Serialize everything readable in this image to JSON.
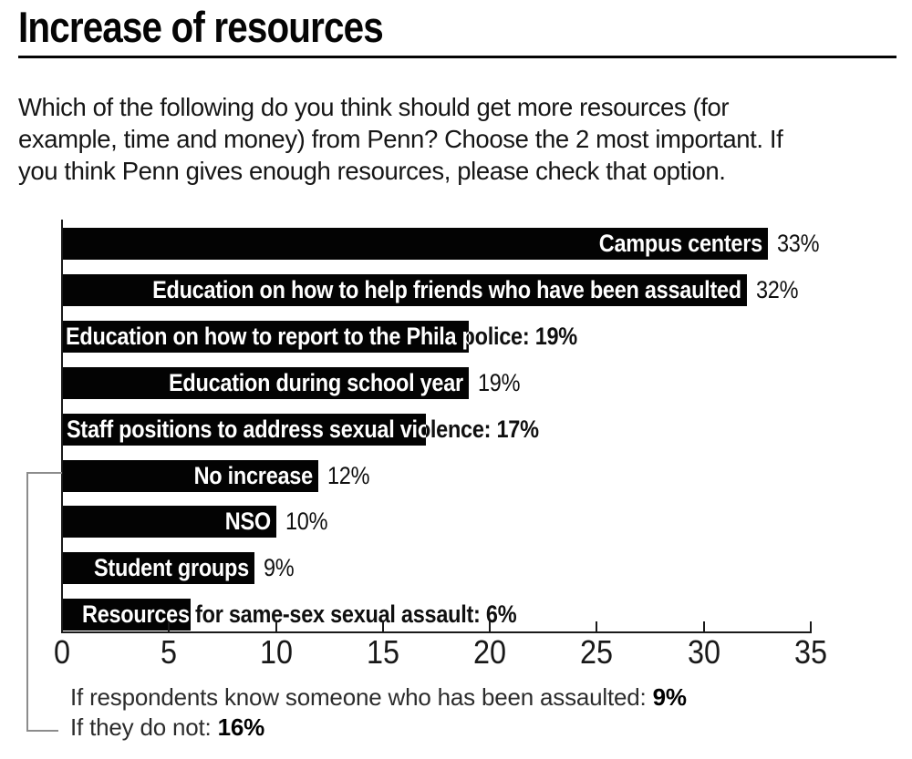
{
  "page": {
    "title": "Increase of resources",
    "question": "Which of the following do you think should get more resources (for\nexample, time and money) from Penn? Choose the 2 most important. If\nyou think Penn gives enough resources, please check that option."
  },
  "chart_data": {
    "type": "bar",
    "orientation": "horizontal",
    "title": "Increase of resources",
    "xlabel": "",
    "ylabel": "",
    "value_suffix": "%",
    "xlim": [
      0,
      35
    ],
    "x_ticks": [
      0,
      5,
      10,
      15,
      20,
      25,
      30,
      35
    ],
    "grid": false,
    "bar_color": "#030303",
    "categories": [
      "Campus centers",
      "Education on how to help friends who have been assaulted",
      "Education on how to report to the Phila police",
      "Education during school year",
      "Staff positions to address sexual violence",
      "No increase",
      "NSO",
      "Student groups",
      "Resources for same-sex sexual assault"
    ],
    "values": [
      33,
      32,
      19,
      19,
      17,
      12,
      10,
      9,
      6
    ],
    "label_layout": [
      "inside",
      "inside",
      "overflow",
      "inside",
      "overflow",
      "inside",
      "inside",
      "inside",
      "overflow"
    ],
    "annotations": {
      "connects_to": "No increase",
      "lines": [
        {
          "label": "If respondents know someone who has been assaulted:",
          "value": "9%"
        },
        {
          "label": "If they do not:",
          "value": "16%"
        }
      ]
    }
  }
}
